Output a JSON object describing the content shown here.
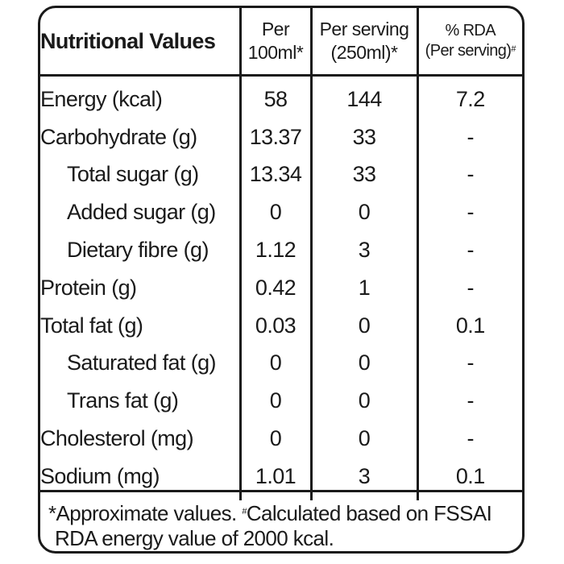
{
  "table": {
    "title": "Nutritional Values",
    "col_per100": {
      "line1": "Per",
      "line2": "100ml*"
    },
    "col_serving": {
      "line1": "Per serving",
      "line2": "(250ml)*"
    },
    "col_rda": {
      "line1": "% RDA",
      "line2": "(Per serving)",
      "mark": "#"
    },
    "rows": [
      {
        "name": "Energy (kcal)",
        "per100": "58",
        "serving": "144",
        "rda": "7.2",
        "indent": false
      },
      {
        "name": "Carbohydrate (g)",
        "per100": "13.37",
        "serving": "33",
        "rda": "-",
        "indent": false
      },
      {
        "name": "Total sugar (g)",
        "per100": "13.34",
        "serving": "33",
        "rda": "-",
        "indent": true
      },
      {
        "name": "Added sugar (g)",
        "per100": "0",
        "serving": "0",
        "rda": "-",
        "indent": true
      },
      {
        "name": "Dietary fibre (g)",
        "per100": "1.12",
        "serving": "3",
        "rda": "-",
        "indent": true
      },
      {
        "name": "Protein (g)",
        "per100": "0.42",
        "serving": "1",
        "rda": "-",
        "indent": false
      },
      {
        "name": "Total fat (g)",
        "per100": "0.03",
        "serving": "0",
        "rda": "0.1",
        "indent": false
      },
      {
        "name": "Saturated fat (g)",
        "per100": "0",
        "serving": "0",
        "rda": "-",
        "indent": true
      },
      {
        "name": "Trans fat (g)",
        "per100": "0",
        "serving": "0",
        "rda": "-",
        "indent": true
      },
      {
        "name": "Cholesterol (mg)",
        "per100": "0",
        "serving": "0",
        "rda": "-",
        "indent": false
      },
      {
        "name": "Sodium (mg)",
        "per100": "1.01",
        "serving": "3",
        "rda": "0.1",
        "indent": false
      }
    ]
  },
  "footer": {
    "line1_a": "*Approximate values. ",
    "mark": "#",
    "line1_b": "Calculated based on FSSAI",
    "line2": "RDA energy value of 2000 kcal."
  }
}
